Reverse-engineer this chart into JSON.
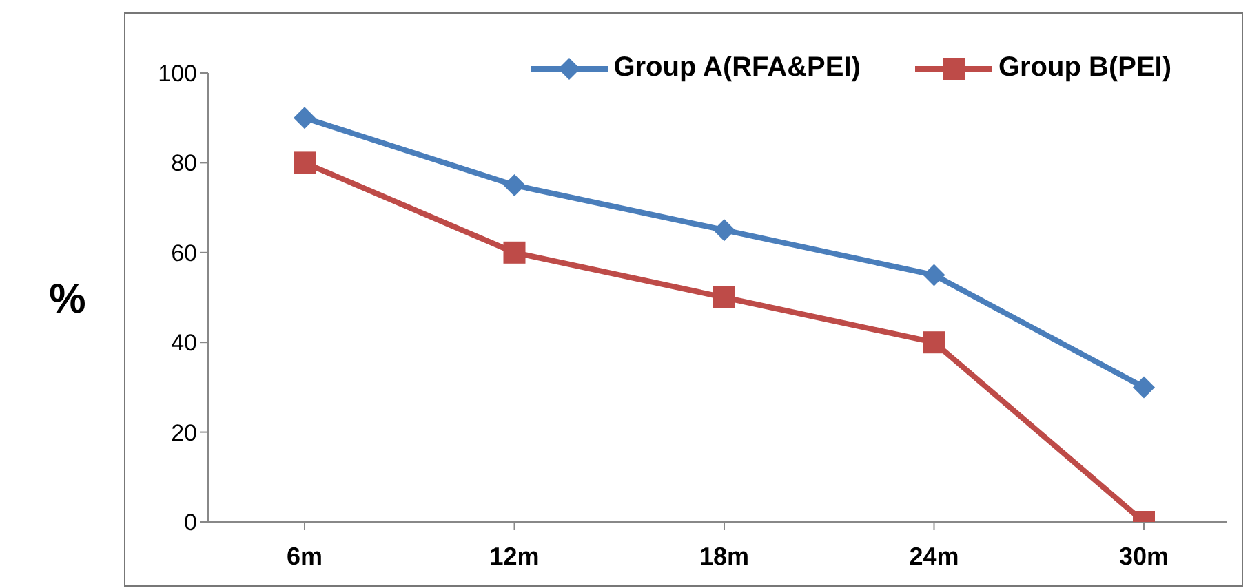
{
  "chart_data": {
    "type": "line",
    "ylabel": "%",
    "categories": [
      "6m",
      "12m",
      "18m",
      "24m",
      "30m"
    ],
    "series": [
      {
        "name": "Group A(RFA&PEI)",
        "color": "#4a7ebb",
        "values": [
          90,
          75,
          65,
          55,
          30
        ],
        "marker": "diamond"
      },
      {
        "name": "Group B(PEI)",
        "color": "#be4b48",
        "values": [
          80,
          60,
          50,
          40,
          0
        ],
        "marker": "square"
      }
    ],
    "ylim": [
      0,
      100
    ],
    "yticks": [
      0,
      20,
      40,
      60,
      80,
      100
    ],
    "grid": false,
    "legend": "top right",
    "line_style": "solid"
  }
}
